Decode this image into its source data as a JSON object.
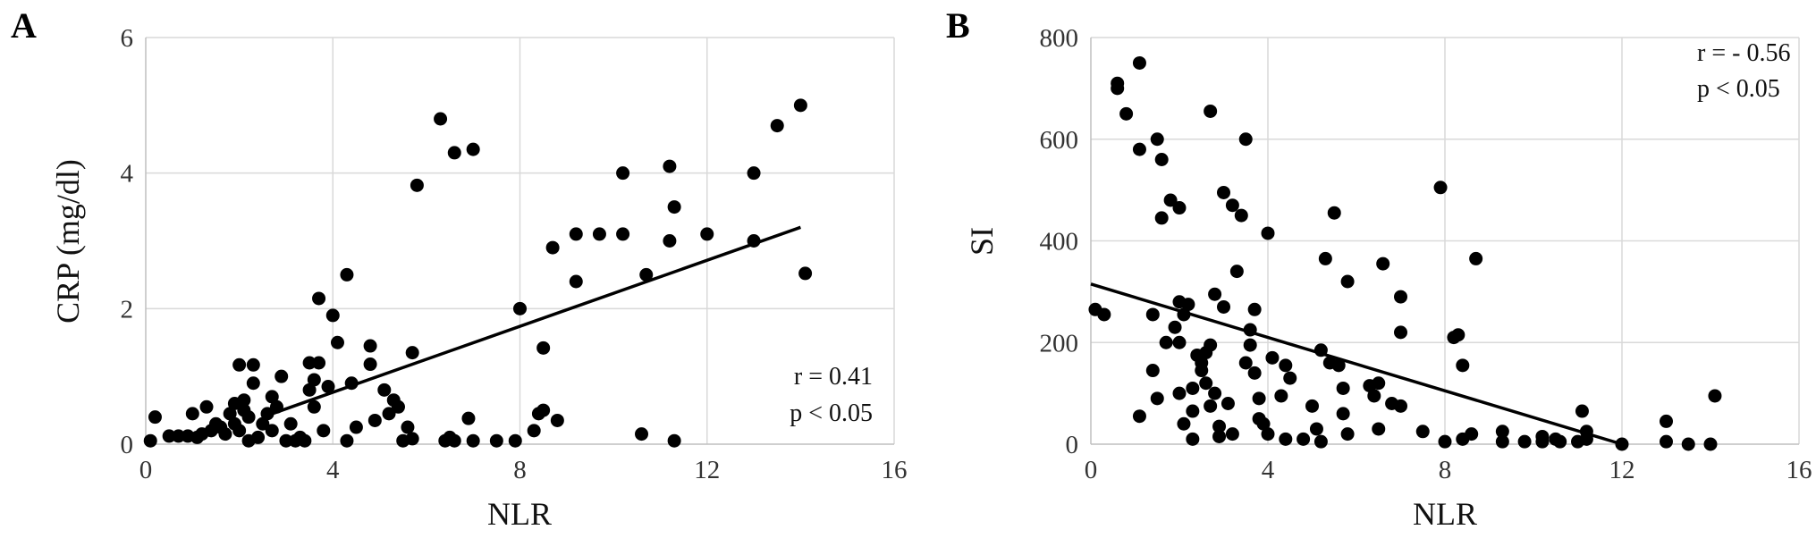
{
  "chart_data": [
    {
      "panel": "A",
      "type": "scatter",
      "xlabel": "NLR",
      "ylabel": "CRP (mg/dl)",
      "xlim": [
        0,
        16
      ],
      "ylim": [
        0,
        6
      ],
      "xticks": [
        0,
        4,
        8,
        12,
        16
      ],
      "yticks": [
        0,
        2,
        4,
        6
      ],
      "grid": true,
      "stats": [
        "r = 0.41",
        "p < 0.05"
      ],
      "trendline": {
        "x": [
          2.5,
          14.0
        ],
        "y": [
          0.4,
          3.2
        ]
      },
      "points": [
        [
          0.1,
          0.05
        ],
        [
          0.2,
          0.4
        ],
        [
          0.5,
          0.12
        ],
        [
          0.7,
          0.12
        ],
        [
          0.9,
          0.12
        ],
        [
          1.0,
          0.45
        ],
        [
          1.1,
          0.1
        ],
        [
          1.2,
          0.15
        ],
        [
          1.3,
          0.55
        ],
        [
          1.4,
          0.2
        ],
        [
          1.5,
          0.3
        ],
        [
          1.6,
          0.25
        ],
        [
          1.7,
          0.15
        ],
        [
          1.8,
          0.45
        ],
        [
          1.9,
          0.3
        ],
        [
          1.9,
          0.6
        ],
        [
          2.0,
          0.2
        ],
        [
          2.0,
          1.17
        ],
        [
          2.1,
          0.5
        ],
        [
          2.1,
          0.65
        ],
        [
          2.2,
          0.05
        ],
        [
          2.2,
          0.4
        ],
        [
          2.3,
          0.9
        ],
        [
          2.3,
          1.17
        ],
        [
          2.4,
          0.1
        ],
        [
          2.5,
          0.3
        ],
        [
          2.6,
          0.45
        ],
        [
          2.7,
          0.7
        ],
        [
          2.7,
          0.2
        ],
        [
          2.8,
          0.55
        ],
        [
          2.9,
          1.0
        ],
        [
          3.0,
          0.05
        ],
        [
          3.1,
          0.3
        ],
        [
          3.2,
          0.05
        ],
        [
          3.3,
          0.1
        ],
        [
          3.4,
          0.05
        ],
        [
          3.5,
          0.8
        ],
        [
          3.5,
          1.2
        ],
        [
          3.6,
          0.95
        ],
        [
          3.6,
          0.55
        ],
        [
          3.7,
          1.2
        ],
        [
          3.7,
          2.15
        ],
        [
          3.8,
          0.2
        ],
        [
          3.9,
          0.85
        ],
        [
          4.0,
          1.9
        ],
        [
          4.1,
          1.5
        ],
        [
          4.3,
          2.5
        ],
        [
          4.3,
          0.05
        ],
        [
          4.4,
          0.9
        ],
        [
          4.5,
          0.25
        ],
        [
          4.8,
          1.45
        ],
        [
          4.8,
          1.18
        ],
        [
          4.9,
          0.35
        ],
        [
          5.1,
          0.8
        ],
        [
          5.2,
          0.45
        ],
        [
          5.3,
          0.65
        ],
        [
          5.4,
          0.55
        ],
        [
          5.5,
          0.05
        ],
        [
          5.6,
          0.25
        ],
        [
          5.7,
          0.08
        ],
        [
          5.7,
          1.35
        ],
        [
          5.8,
          3.82
        ],
        [
          6.3,
          4.8
        ],
        [
          6.4,
          0.05
        ],
        [
          6.5,
          0.1
        ],
        [
          6.6,
          4.3
        ],
        [
          6.6,
          0.05
        ],
        [
          6.9,
          0.38
        ],
        [
          7.0,
          4.35
        ],
        [
          7.0,
          0.05
        ],
        [
          7.5,
          0.05
        ],
        [
          7.9,
          0.05
        ],
        [
          8.0,
          2.0
        ],
        [
          8.3,
          0.2
        ],
        [
          8.4,
          0.45
        ],
        [
          8.5,
          0.5
        ],
        [
          8.5,
          1.42
        ],
        [
          8.7,
          2.9
        ],
        [
          8.8,
          0.35
        ],
        [
          9.2,
          3.1
        ],
        [
          9.2,
          2.4
        ],
        [
          9.7,
          3.1
        ],
        [
          10.2,
          3.1
        ],
        [
          10.2,
          4.0
        ],
        [
          10.6,
          0.15
        ],
        [
          10.7,
          2.5
        ],
        [
          11.2,
          4.1
        ],
        [
          11.2,
          3.0
        ],
        [
          11.3,
          3.5
        ],
        [
          11.3,
          0.05
        ],
        [
          12.0,
          3.1
        ],
        [
          13.0,
          4.0
        ],
        [
          13.0,
          3.0
        ],
        [
          13.5,
          4.7
        ],
        [
          14.0,
          5.0
        ],
        [
          14.1,
          2.52
        ]
      ]
    },
    {
      "panel": "B",
      "type": "scatter",
      "xlabel": "NLR",
      "ylabel": "SI",
      "xlim": [
        0,
        16
      ],
      "ylim": [
        0,
        800
      ],
      "xticks": [
        0,
        4,
        8,
        12,
        16
      ],
      "yticks": [
        0,
        200,
        400,
        600,
        800
      ],
      "grid": true,
      "stats": [
        "r = - 0.56",
        "p < 0.05"
      ],
      "trendline": {
        "x": [
          0.0,
          12.0
        ],
        "y": [
          315,
          0
        ]
      },
      "points": [
        [
          0.1,
          265
        ],
        [
          0.3,
          255
        ],
        [
          0.6,
          710
        ],
        [
          0.6,
          700
        ],
        [
          0.8,
          650
        ],
        [
          1.1,
          750
        ],
        [
          1.1,
          580
        ],
        [
          1.1,
          55
        ],
        [
          1.4,
          255
        ],
        [
          1.4,
          145
        ],
        [
          1.5,
          600
        ],
        [
          1.5,
          90
        ],
        [
          1.6,
          445
        ],
        [
          1.6,
          560
        ],
        [
          1.7,
          200
        ],
        [
          1.8,
          480
        ],
        [
          1.9,
          230
        ],
        [
          2.0,
          465
        ],
        [
          2.0,
          200
        ],
        [
          2.0,
          280
        ],
        [
          2.0,
          100
        ],
        [
          2.1,
          255
        ],
        [
          2.1,
          40
        ],
        [
          2.2,
          275
        ],
        [
          2.3,
          110
        ],
        [
          2.3,
          65
        ],
        [
          2.3,
          10
        ],
        [
          2.4,
          175
        ],
        [
          2.5,
          160
        ],
        [
          2.5,
          145
        ],
        [
          2.6,
          180
        ],
        [
          2.6,
          120
        ],
        [
          2.7,
          655
        ],
        [
          2.7,
          195
        ],
        [
          2.7,
          75
        ],
        [
          2.8,
          100
        ],
        [
          2.8,
          295
        ],
        [
          2.9,
          35
        ],
        [
          2.9,
          15
        ],
        [
          3.0,
          495
        ],
        [
          3.0,
          270
        ],
        [
          3.1,
          80
        ],
        [
          3.2,
          470
        ],
        [
          3.2,
          20
        ],
        [
          3.3,
          340
        ],
        [
          3.4,
          450
        ],
        [
          3.5,
          600
        ],
        [
          3.5,
          160
        ],
        [
          3.6,
          225
        ],
        [
          3.6,
          195
        ],
        [
          3.7,
          265
        ],
        [
          3.7,
          140
        ],
        [
          3.8,
          90
        ],
        [
          3.8,
          50
        ],
        [
          3.9,
          40
        ],
        [
          4.0,
          20
        ],
        [
          4.0,
          415
        ],
        [
          4.1,
          170
        ],
        [
          4.3,
          95
        ],
        [
          4.4,
          155
        ],
        [
          4.4,
          10
        ],
        [
          4.5,
          130
        ],
        [
          4.8,
          10
        ],
        [
          5.0,
          75
        ],
        [
          5.1,
          30
        ],
        [
          5.2,
          185
        ],
        [
          5.2,
          5
        ],
        [
          5.3,
          365
        ],
        [
          5.4,
          160
        ],
        [
          5.5,
          455
        ],
        [
          5.6,
          155
        ],
        [
          5.7,
          110
        ],
        [
          5.7,
          60
        ],
        [
          5.8,
          20
        ],
        [
          5.8,
          320
        ],
        [
          6.3,
          115
        ],
        [
          6.4,
          95
        ],
        [
          6.5,
          120
        ],
        [
          6.5,
          30
        ],
        [
          6.6,
          355
        ],
        [
          6.8,
          80
        ],
        [
          7.0,
          220
        ],
        [
          7.0,
          290
        ],
        [
          7.0,
          75
        ],
        [
          7.5,
          25
        ],
        [
          7.9,
          505
        ],
        [
          8.0,
          5
        ],
        [
          8.2,
          210
        ],
        [
          8.3,
          215
        ],
        [
          8.4,
          155
        ],
        [
          8.4,
          10
        ],
        [
          8.6,
          20
        ],
        [
          8.7,
          365
        ],
        [
          9.3,
          25
        ],
        [
          9.3,
          5
        ],
        [
          9.8,
          5
        ],
        [
          10.2,
          15
        ],
        [
          10.2,
          5
        ],
        [
          10.5,
          10
        ],
        [
          10.6,
          5
        ],
        [
          11.0,
          5
        ],
        [
          11.1,
          65
        ],
        [
          11.2,
          25
        ],
        [
          11.2,
          10
        ],
        [
          12.0,
          0
        ],
        [
          13.0,
          45
        ],
        [
          13.0,
          5
        ],
        [
          13.5,
          0
        ],
        [
          14.0,
          0
        ],
        [
          14.1,
          95
        ]
      ]
    }
  ]
}
